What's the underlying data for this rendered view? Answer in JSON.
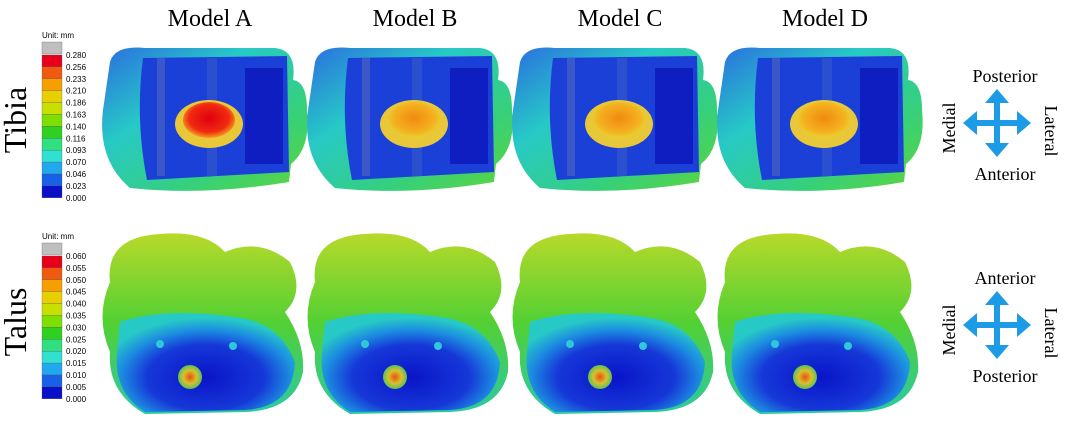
{
  "columns": [
    "Model A",
    "Model B",
    "Model C",
    "Model D"
  ],
  "rows": [
    {
      "label": "Tibia",
      "legend": {
        "unit": "Unit: mm",
        "ticks": [
          "0.280",
          "0.256",
          "0.233",
          "0.210",
          "0.186",
          "0.163",
          "0.140",
          "0.116",
          "0.093",
          "0.070",
          "0.046",
          "0.023",
          "0.000"
        ]
      },
      "orientation": {
        "top": "Posterior",
        "bottom": "Anterior",
        "left": "Medial",
        "right": "Lateral"
      }
    },
    {
      "label": "Talus",
      "legend": {
        "unit": "Unit: mm",
        "ticks": [
          "0.060",
          "0.055",
          "0.050",
          "0.045",
          "0.040",
          "0.035",
          "0.030",
          "0.025",
          "0.020",
          "0.015",
          "0.010",
          "0.005",
          "0.000"
        ]
      },
      "orientation": {
        "top": "Anterior",
        "bottom": "Posterior",
        "left": "Medial",
        "right": "Lateral"
      }
    }
  ]
}
